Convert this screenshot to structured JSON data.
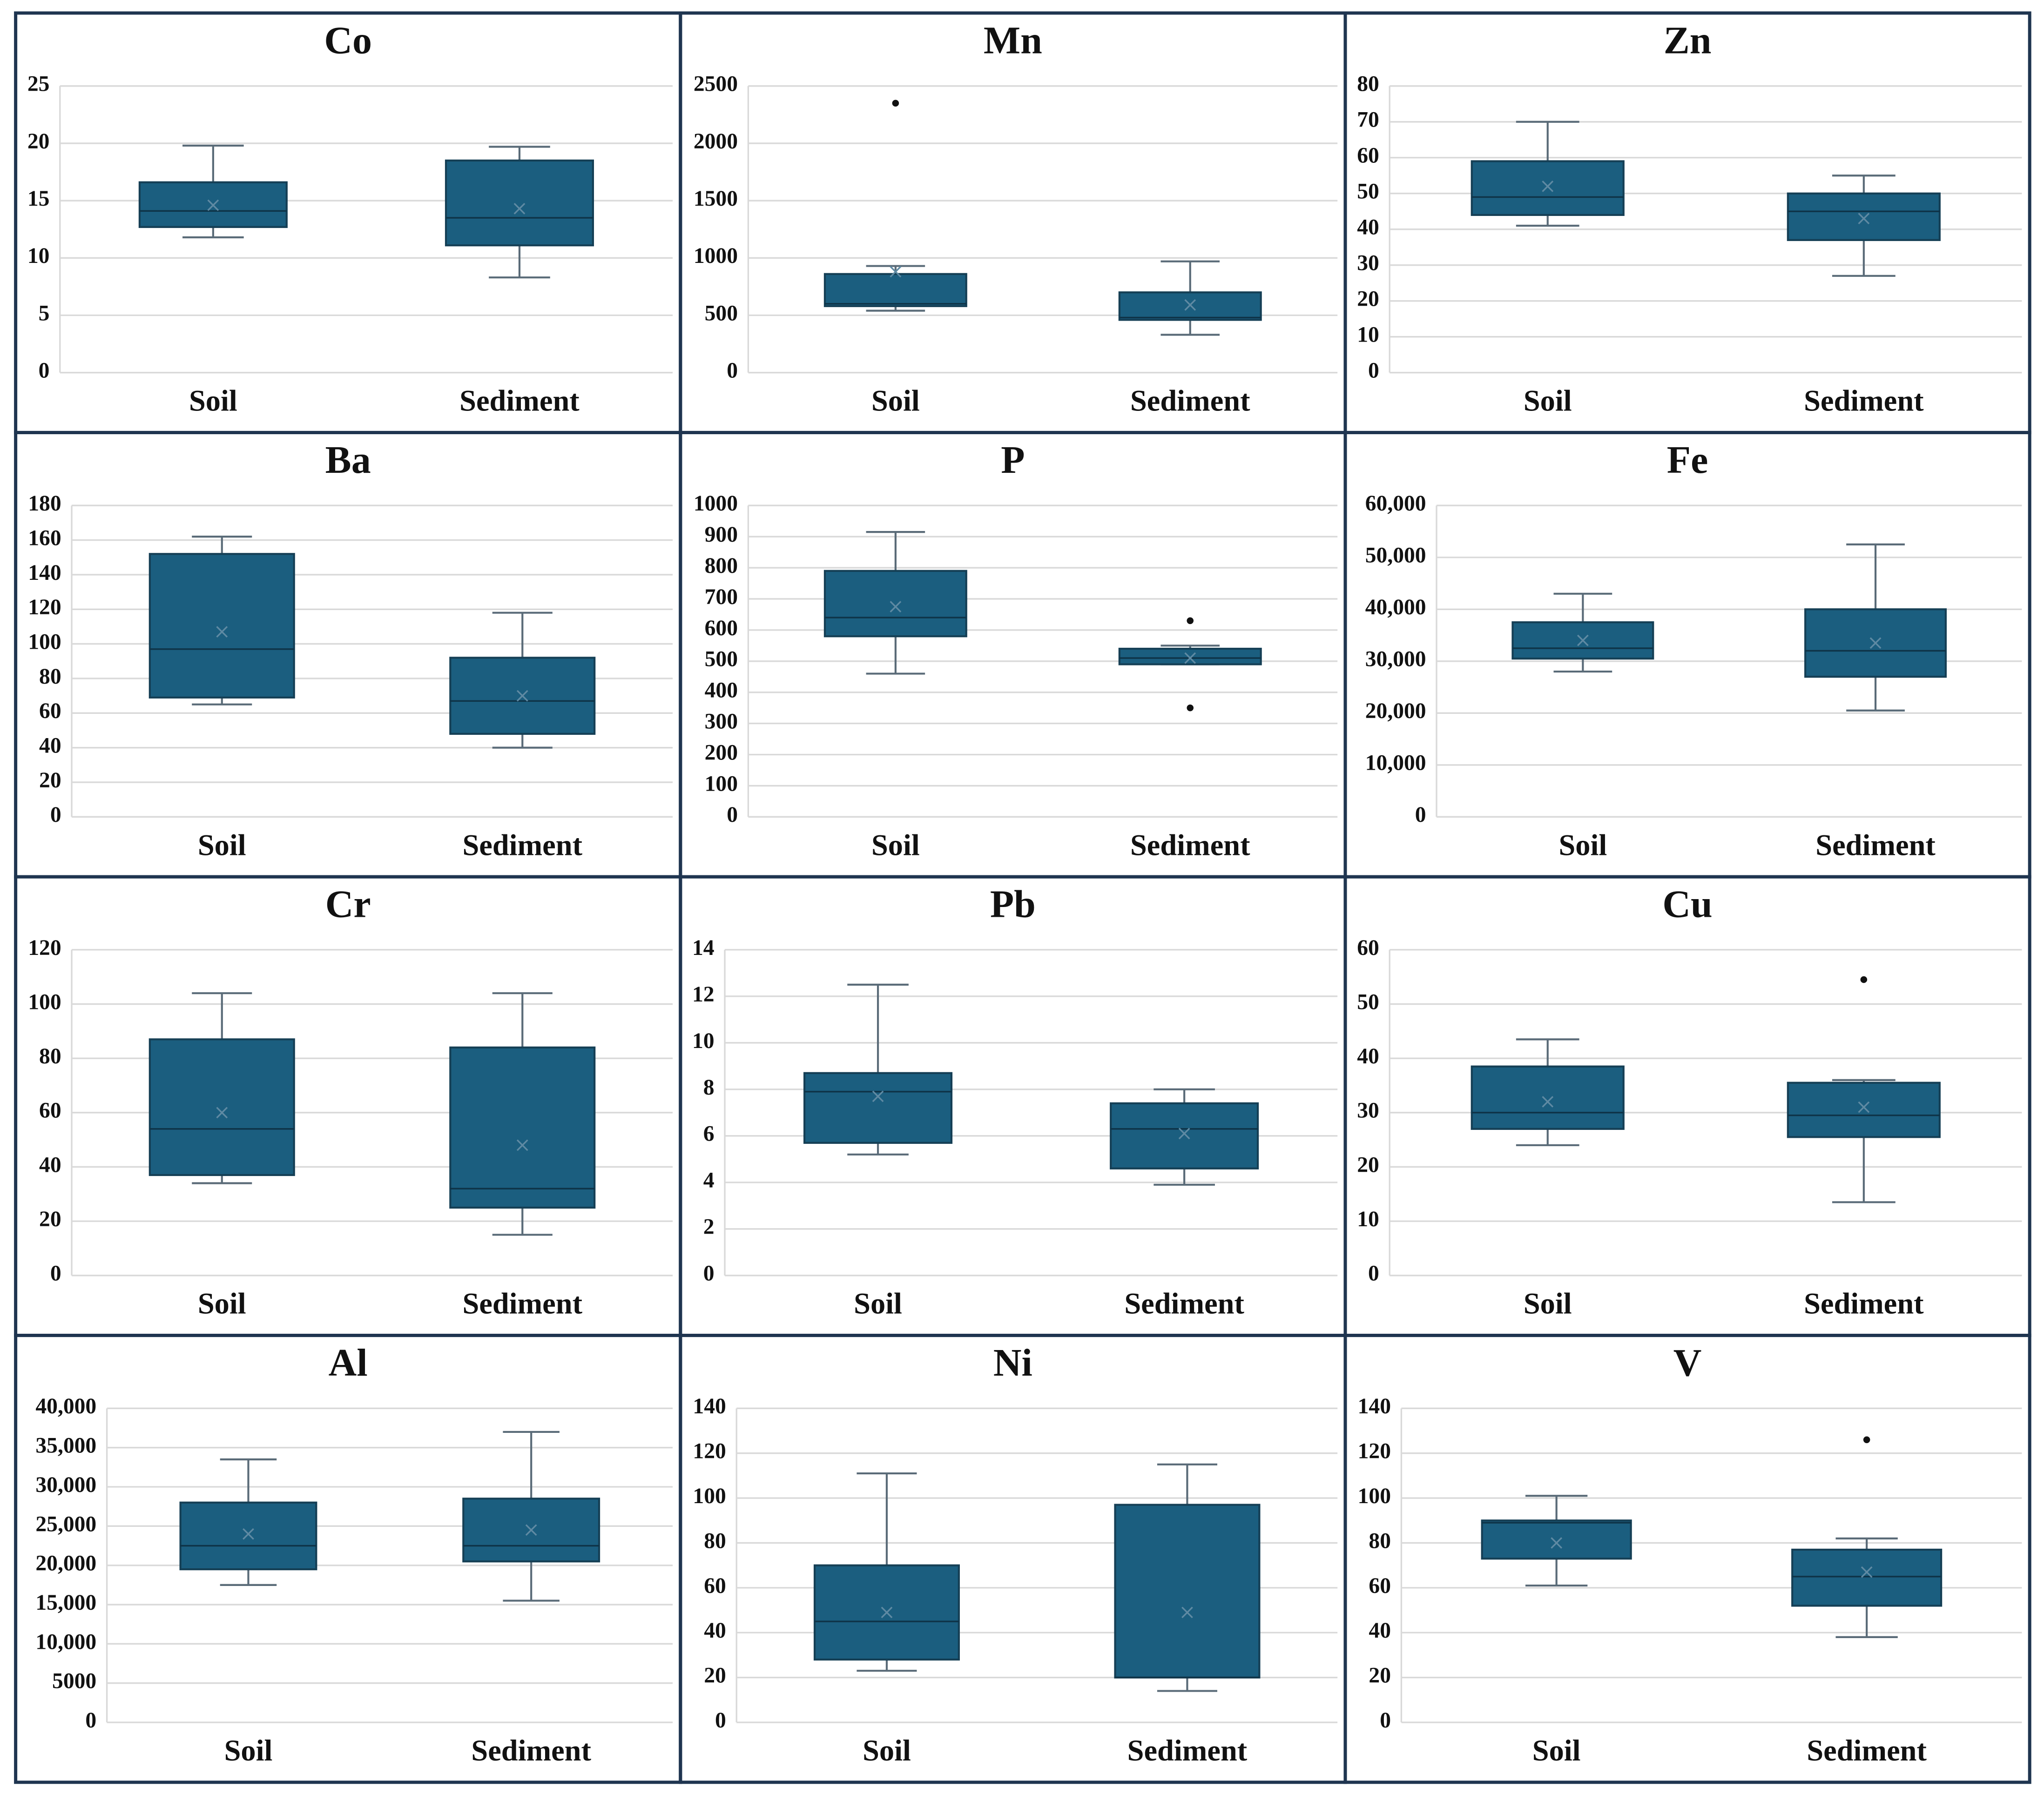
{
  "chart_data": [
    {
      "type": "box",
      "title": "Co",
      "categories": [
        "Soil",
        "Sediment"
      ],
      "color": "#1b5e7f",
      "grid": true,
      "ylim": [
        0,
        25
      ],
      "yticks": [
        0,
        5,
        10,
        15,
        20,
        25
      ],
      "values": [
        {
          "min": 11.8,
          "q1": 12.7,
          "median": 14.1,
          "q3": 16.6,
          "max": 19.8,
          "mean": 14.6,
          "outliers": []
        },
        {
          "min": 8.3,
          "q1": 11.1,
          "median": 13.5,
          "q3": 18.5,
          "max": 19.7,
          "mean": 14.3,
          "outliers": []
        }
      ]
    },
    {
      "type": "box",
      "title": "Mn",
      "categories": [
        "Soil",
        "Sediment"
      ],
      "color": "#1b5e7f",
      "grid": true,
      "ylim": [
        0,
        2500
      ],
      "yticks": [
        0,
        500,
        1000,
        1500,
        2000,
        2500
      ],
      "values": [
        {
          "min": 540,
          "q1": 580,
          "median": 600,
          "q3": 860,
          "max": 930,
          "mean": 880,
          "outliers": [
            2350
          ]
        },
        {
          "min": 330,
          "q1": 460,
          "median": 480,
          "q3": 700,
          "max": 970,
          "mean": 590,
          "outliers": []
        }
      ]
    },
    {
      "type": "box",
      "title": "Zn",
      "categories": [
        "Soil",
        "Sediment"
      ],
      "color": "#1b5e7f",
      "grid": true,
      "ylim": [
        0,
        80
      ],
      "yticks": [
        0,
        10,
        20,
        30,
        40,
        50,
        60,
        70,
        80
      ],
      "values": [
        {
          "min": 41,
          "q1": 44,
          "median": 49,
          "q3": 59,
          "max": 70,
          "mean": 52,
          "outliers": []
        },
        {
          "min": 27,
          "q1": 37,
          "median": 45,
          "q3": 50,
          "max": 55,
          "mean": 43,
          "outliers": []
        }
      ]
    },
    {
      "type": "box",
      "title": "Ba",
      "categories": [
        "Soil",
        "Sediment"
      ],
      "color": "#1b5e7f",
      "grid": true,
      "ylim": [
        0,
        180
      ],
      "yticks": [
        0,
        20,
        40,
        60,
        80,
        100,
        120,
        140,
        160,
        180
      ],
      "values": [
        {
          "min": 65,
          "q1": 69,
          "median": 97,
          "q3": 152,
          "max": 162,
          "mean": 107,
          "outliers": []
        },
        {
          "min": 40,
          "q1": 48,
          "median": 67,
          "q3": 92,
          "max": 118,
          "mean": 70,
          "outliers": []
        }
      ]
    },
    {
      "type": "box",
      "title": "P",
      "categories": [
        "Soil",
        "Sediment"
      ],
      "color": "#1b5e7f",
      "grid": true,
      "ylim": [
        0,
        1000
      ],
      "yticks": [
        0,
        100,
        200,
        300,
        400,
        500,
        600,
        700,
        800,
        900,
        1000
      ],
      "values": [
        {
          "min": 460,
          "q1": 580,
          "median": 640,
          "q3": 790,
          "max": 915,
          "mean": 675,
          "outliers": []
        },
        {
          "min": 490,
          "q1": 490,
          "median": 510,
          "q3": 540,
          "max": 550,
          "mean": 510,
          "outliers": [
            630,
            350
          ]
        }
      ]
    },
    {
      "type": "box",
      "title": "Fe",
      "categories": [
        "Soil",
        "Sediment"
      ],
      "color": "#1b5e7f",
      "grid": true,
      "ylim": [
        0,
        60000
      ],
      "yticks": [
        0,
        {
          "value": 10000,
          "label": "10,000"
        },
        {
          "value": 20000,
          "label": "20,000"
        },
        {
          "value": 30000,
          "label": "30,000"
        },
        {
          "value": 40000,
          "label": "40,000"
        },
        {
          "value": 50000,
          "label": "50,000"
        },
        {
          "value": 60000,
          "label": "60,000"
        }
      ],
      "values": [
        {
          "min": 28000,
          "q1": 30500,
          "median": 32500,
          "q3": 37500,
          "max": 43000,
          "mean": 34000,
          "outliers": []
        },
        {
          "min": 20500,
          "q1": 27000,
          "median": 32000,
          "q3": 40000,
          "max": 52500,
          "mean": 33500,
          "outliers": []
        }
      ]
    },
    {
      "type": "box",
      "title": "Cr",
      "categories": [
        "Soil",
        "Sediment"
      ],
      "color": "#1b5e7f",
      "grid": true,
      "ylim": [
        0,
        120
      ],
      "yticks": [
        0,
        20,
        40,
        60,
        80,
        100,
        120
      ],
      "values": [
        {
          "min": 34,
          "q1": 37,
          "median": 54,
          "q3": 87,
          "max": 104,
          "mean": 60,
          "outliers": []
        },
        {
          "min": 15,
          "q1": 25,
          "median": 32,
          "q3": 84,
          "max": 104,
          "mean": 48,
          "outliers": []
        }
      ]
    },
    {
      "type": "box",
      "title": "Pb",
      "categories": [
        "Soil",
        "Sediment"
      ],
      "color": "#1b5e7f",
      "grid": true,
      "ylim": [
        0,
        14
      ],
      "yticks": [
        0,
        2,
        4,
        6,
        8,
        10,
        12,
        14
      ],
      "values": [
        {
          "min": 5.2,
          "q1": 5.7,
          "median": 7.9,
          "q3": 8.7,
          "max": 12.5,
          "mean": 7.7,
          "outliers": []
        },
        {
          "min": 3.9,
          "q1": 4.6,
          "median": 6.3,
          "q3": 7.4,
          "max": 8.0,
          "mean": 6.1,
          "outliers": []
        }
      ]
    },
    {
      "type": "box",
      "title": "Cu",
      "categories": [
        "Soil",
        "Sediment"
      ],
      "color": "#1b5e7f",
      "grid": true,
      "ylim": [
        0,
        60
      ],
      "yticks": [
        0,
        10,
        20,
        30,
        40,
        50,
        60
      ],
      "values": [
        {
          "min": 24,
          "q1": 27,
          "median": 30,
          "q3": 38.5,
          "max": 43.5,
          "mean": 32,
          "outliers": []
        },
        {
          "min": 13.5,
          "q1": 25.5,
          "median": 29.5,
          "q3": 35.5,
          "max": 36,
          "mean": 31,
          "outliers": [
            54.5
          ]
        }
      ]
    },
    {
      "type": "box",
      "title": "Al",
      "categories": [
        "Soil",
        "Sediment"
      ],
      "color": "#1b5e7f",
      "grid": true,
      "ylim": [
        0,
        40000
      ],
      "yticks": [
        0,
        5000,
        {
          "value": 10000,
          "label": "10,000"
        },
        {
          "value": 15000,
          "label": "15,000"
        },
        {
          "value": 20000,
          "label": "20,000"
        },
        {
          "value": 25000,
          "label": "25,000"
        },
        {
          "value": 30000,
          "label": "30,000"
        },
        {
          "value": 35000,
          "label": "35,000"
        },
        {
          "value": 40000,
          "label": "40,000"
        }
      ],
      "values": [
        {
          "min": 17500,
          "q1": 19500,
          "median": 22500,
          "q3": 28000,
          "max": 33500,
          "mean": 24000,
          "outliers": []
        },
        {
          "min": 15500,
          "q1": 20500,
          "median": 22500,
          "q3": 28500,
          "max": 37000,
          "mean": 24500,
          "outliers": []
        }
      ]
    },
    {
      "type": "box",
      "title": "Ni",
      "categories": [
        "Soil",
        "Sediment"
      ],
      "color": "#1b5e7f",
      "grid": true,
      "ylim": [
        0,
        140
      ],
      "yticks": [
        0,
        20,
        40,
        60,
        80,
        100,
        120,
        140
      ],
      "values": [
        {
          "min": 23,
          "q1": 28,
          "median": 45,
          "q3": 70,
          "max": 111,
          "mean": 49,
          "outliers": []
        },
        {
          "min": 14,
          "q1": 20,
          "median": 20,
          "q3": 97,
          "max": 115,
          "mean": 49,
          "outliers": []
        }
      ]
    },
    {
      "type": "box",
      "title": "V",
      "categories": [
        "Soil",
        "Sediment"
      ],
      "color": "#1b5e7f",
      "grid": true,
      "ylim": [
        0,
        140
      ],
      "yticks": [
        0,
        20,
        40,
        60,
        80,
        100,
        120,
        140
      ],
      "values": [
        {
          "min": 61,
          "q1": 73,
          "median": 89,
          "q3": 90,
          "max": 101,
          "mean": 80,
          "outliers": []
        },
        {
          "min": 38,
          "q1": 52,
          "median": 65,
          "q3": 77,
          "max": 82,
          "mean": 67,
          "outliers": [
            126
          ]
        }
      ]
    }
  ]
}
